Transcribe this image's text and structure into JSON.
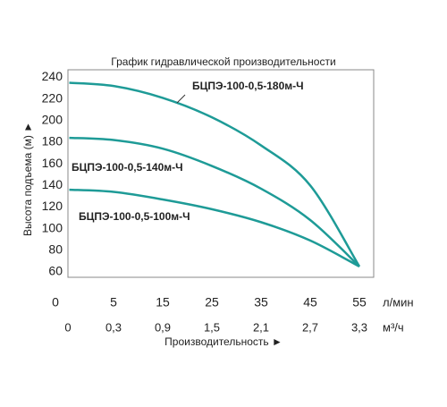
{
  "chart_data": {
    "type": "line",
    "title": "График гидравлической производительности",
    "xlabel": "Производительность ►",
    "ylabel": "Высота подъема (м) ►",
    "x_unit": "л/мин",
    "x2_unit": "м³/ч",
    "x": [
      0.5,
      5,
      15,
      25,
      35,
      45,
      55
    ],
    "xticks": [
      0,
      5,
      15,
      25,
      35,
      45,
      55
    ],
    "x2ticks": [
      0,
      {
        "value": 0.3,
        "label": "0,3"
      },
      {
        "value": 0.9,
        "label": "0,9"
      },
      {
        "value": 1.5,
        "label": "1,5"
      },
      {
        "value": 2.1,
        "label": "2,1"
      },
      {
        "value": 2.7,
        "label": "2,7"
      },
      {
        "value": 3.3,
        "label": "3,3"
      }
    ],
    "ylim": [
      55,
      247
    ],
    "yticks": [
      60,
      80,
      100,
      120,
      140,
      160,
      180,
      200,
      220,
      240
    ],
    "series": [
      {
        "name": "БЦПЭ-100-0,5-180м-Ч",
        "color": "#1e9b97",
        "values": [
          235,
          232,
          221,
          203,
          177,
          140,
          65
        ]
      },
      {
        "name": "БЦПЭ-100-0,5-140м-Ч",
        "color": "#1e9b97",
        "values": [
          184,
          182,
          174,
          158,
          137,
          108,
          65
        ]
      },
      {
        "name": "БЦПЭ-100-0,5-100м-Ч",
        "color": "#1e9b97",
        "values": [
          136,
          134,
          127,
          118,
          106,
          89,
          65
        ]
      }
    ]
  }
}
